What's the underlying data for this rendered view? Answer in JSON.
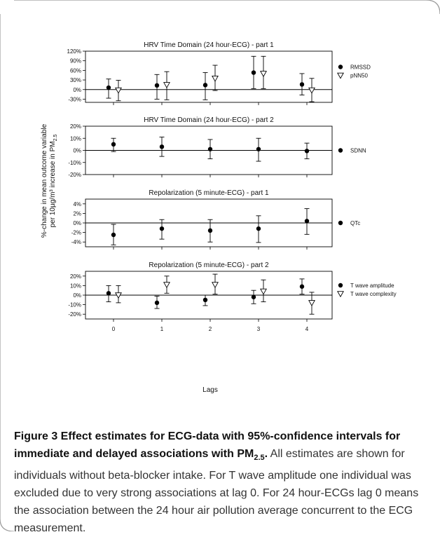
{
  "figure": {
    "ylabel_line1": "%-change in mean outcome variable",
    "ylabel_line2_prefix": "per 10µg/m³ increase in PM",
    "ylabel_line2_sub": "2.5",
    "xlabel": "Lags"
  },
  "caption": {
    "bold_prefix": "Figure 3 Effect estimates for ECG-data with 95%-confidence intervals for immediate and delayed associations with PM",
    "bold_sub": "2.5",
    "bold_suffix": ".",
    "text": " All estimates are shown for individuals without beta-blocker intake. For T wave amplitude one individual was excluded due to very strong associations at lag 0. For 24 hour-ECGs lag 0 means the association between the 24 hour air pollution average concurrent to the ECG measurement."
  },
  "chart_data": [
    {
      "type": "scatter",
      "title": "HRV Time Domain (24 hour-ECG) - part 1",
      "x": [
        0,
        1,
        2,
        3,
        4
      ],
      "xticks": [
        "0",
        "1",
        "2",
        "3",
        "4"
      ],
      "ylim": [
        -40,
        120
      ],
      "yticks": [
        -30,
        0,
        30,
        60,
        90,
        120
      ],
      "ytick_labels": [
        "-30%",
        "0%",
        "30%",
        "60%",
        "90%",
        "120%"
      ],
      "series": [
        {
          "name": "RMSSD",
          "marker": "filled-circle",
          "values": [
            6,
            13,
            14,
            53,
            16
          ],
          "ci_low": [
            -27,
            -30,
            -32,
            3,
            -17
          ],
          "ci_high": [
            33,
            47,
            53,
            104,
            50
          ]
        },
        {
          "name": "pNN50",
          "marker": "open-triangle",
          "values": [
            -2,
            15,
            35,
            50,
            -2
          ],
          "ci_low": [
            -35,
            -32,
            -3,
            3,
            -38
          ],
          "ci_high": [
            29,
            56,
            76,
            104,
            35
          ]
        }
      ]
    },
    {
      "type": "scatter",
      "title": "HRV Time Domain (24 hour-ECG) - part 2",
      "x": [
        0,
        1,
        2,
        3,
        4
      ],
      "xticks": [
        "0",
        "1",
        "2",
        "3",
        "4"
      ],
      "ylim": [
        -20,
        20
      ],
      "yticks": [
        -20,
        -10,
        0,
        10,
        20
      ],
      "ytick_labels": [
        "-20%",
        "-10%",
        "0%",
        "10%",
        "20%"
      ],
      "series": [
        {
          "name": "SDNN",
          "marker": "filled-circle",
          "values": [
            5,
            3,
            1,
            1,
            -0.5
          ],
          "ci_low": [
            -1,
            -5,
            -7,
            -9,
            -7
          ],
          "ci_high": [
            10,
            11,
            9,
            10,
            6
          ]
        }
      ]
    },
    {
      "type": "scatter",
      "title": "Repolarization (5 minute-ECG) - part 1",
      "x": [
        0,
        1,
        2,
        3,
        4
      ],
      "xticks": [
        "0",
        "1",
        "2",
        "3",
        "4"
      ],
      "ylim": [
        -5,
        5
      ],
      "yticks": [
        -4,
        -2,
        0,
        2,
        4
      ],
      "ytick_labels": [
        "-4%",
        "-2%",
        "0%",
        "2%",
        "4%"
      ],
      "series": [
        {
          "name": "QTc",
          "marker": "filled-circle",
          "values": [
            -2.5,
            -1.2,
            -1.6,
            -1.2,
            0.4
          ],
          "ci_low": [
            -4.6,
            -3.4,
            -4,
            -4.1,
            -2.4
          ],
          "ci_high": [
            -0.3,
            0.7,
            0.7,
            1.5,
            3
          ]
        }
      ]
    },
    {
      "type": "scatter",
      "title": "Repolarization (5 minute-ECG) - part 2",
      "x": [
        0,
        1,
        2,
        3,
        4
      ],
      "xticks": [
        "0",
        "1",
        "2",
        "3",
        "4"
      ],
      "ylim": [
        -25,
        25
      ],
      "yticks": [
        -20,
        -10,
        0,
        10,
        20
      ],
      "ytick_labels": [
        "-20%",
        "-10%",
        "0%",
        "10%",
        "20%"
      ],
      "series": [
        {
          "name": "T wave amplitude",
          "marker": "filled-circle",
          "values": [
            2,
            -8,
            -5,
            -2,
            9
          ],
          "ci_low": [
            -7,
            -14,
            -11,
            -9,
            1
          ],
          "ci_high": [
            10,
            -1,
            0,
            5,
            17
          ]
        },
        {
          "name": "T wave complexity",
          "marker": "open-triangle",
          "values": [
            0,
            11,
            11,
            4,
            -8
          ],
          "ci_low": [
            -8,
            2,
            1,
            -7,
            -20
          ],
          "ci_high": [
            10,
            20,
            22,
            16,
            3
          ]
        }
      ]
    }
  ]
}
